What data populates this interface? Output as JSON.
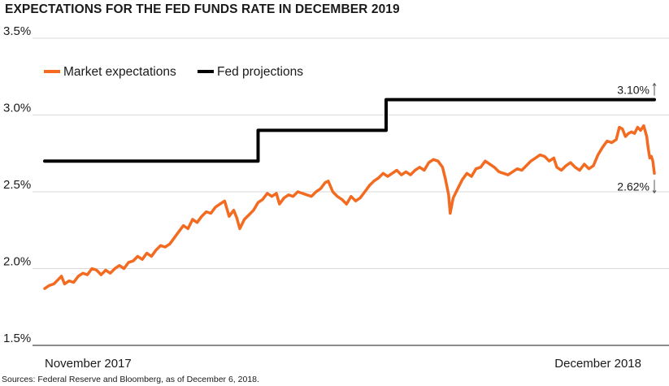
{
  "chart_data": {
    "type": "line",
    "title": "EXPECTATIONS FOR THE FED FUNDS RATE IN DECEMBER 2019",
    "source": "Sources: Federal Reserve and Bloomberg, as of December 6, 2018.",
    "ylim": [
      1.5,
      3.5
    ],
    "y_ticks": [
      {
        "value": 3.5,
        "label": "3.5%"
      },
      {
        "value": 3.0,
        "label": "3.0%"
      },
      {
        "value": 2.5,
        "label": "2.5%"
      },
      {
        "value": 2.0,
        "label": "2.0%"
      },
      {
        "value": 1.5,
        "label": "1.5%"
      }
    ],
    "x_range": [
      "2017-11-01",
      "2018-12-06"
    ],
    "x_tick_labels": [
      {
        "date": "2017-11-01",
        "label": "November 2017"
      },
      {
        "date": "2018-12-06",
        "label": "December 2018"
      }
    ],
    "grid": true,
    "legend_position": "top-left",
    "series": [
      {
        "name": "Market expectations",
        "color": "#f26b21",
        "style": "line",
        "points": [
          [
            "2017-11-01",
            1.87
          ],
          [
            "2017-11-04",
            1.89
          ],
          [
            "2017-11-07",
            1.9
          ],
          [
            "2017-11-10",
            1.93
          ],
          [
            "2017-11-12",
            1.95
          ],
          [
            "2017-11-14",
            1.9
          ],
          [
            "2017-11-17",
            1.92
          ],
          [
            "2017-11-20",
            1.91
          ],
          [
            "2017-11-23",
            1.95
          ],
          [
            "2017-11-26",
            1.97
          ],
          [
            "2017-11-29",
            1.96
          ],
          [
            "2017-12-02",
            2.0
          ],
          [
            "2017-12-05",
            1.99
          ],
          [
            "2017-12-08",
            1.96
          ],
          [
            "2017-12-11",
            1.99
          ],
          [
            "2017-12-14",
            1.97
          ],
          [
            "2017-12-17",
            2.0
          ],
          [
            "2017-12-20",
            2.02
          ],
          [
            "2017-12-23",
            2.0
          ],
          [
            "2017-12-26",
            2.04
          ],
          [
            "2017-12-29",
            2.05
          ],
          [
            "2018-01-01",
            2.08
          ],
          [
            "2018-01-04",
            2.06
          ],
          [
            "2018-01-07",
            2.1
          ],
          [
            "2018-01-10",
            2.08
          ],
          [
            "2018-01-13",
            2.12
          ],
          [
            "2018-01-16",
            2.15
          ],
          [
            "2018-01-19",
            2.14
          ],
          [
            "2018-01-22",
            2.16
          ],
          [
            "2018-01-25",
            2.2
          ],
          [
            "2018-01-28",
            2.24
          ],
          [
            "2018-01-31",
            2.28
          ],
          [
            "2018-02-03",
            2.26
          ],
          [
            "2018-02-06",
            2.32
          ],
          [
            "2018-02-09",
            2.3
          ],
          [
            "2018-02-12",
            2.34
          ],
          [
            "2018-02-15",
            2.37
          ],
          [
            "2018-02-18",
            2.36
          ],
          [
            "2018-02-21",
            2.4
          ],
          [
            "2018-02-24",
            2.42
          ],
          [
            "2018-02-27",
            2.44
          ],
          [
            "2018-03-02",
            2.34
          ],
          [
            "2018-03-05",
            2.38
          ],
          [
            "2018-03-07",
            2.33
          ],
          [
            "2018-03-09",
            2.26
          ],
          [
            "2018-03-12",
            2.32
          ],
          [
            "2018-03-15",
            2.35
          ],
          [
            "2018-03-18",
            2.38
          ],
          [
            "2018-03-21",
            2.43
          ],
          [
            "2018-03-24",
            2.45
          ],
          [
            "2018-03-27",
            2.49
          ],
          [
            "2018-03-30",
            2.47
          ],
          [
            "2018-04-02",
            2.49
          ],
          [
            "2018-04-04",
            2.42
          ],
          [
            "2018-04-07",
            2.46
          ],
          [
            "2018-04-10",
            2.48
          ],
          [
            "2018-04-13",
            2.47
          ],
          [
            "2018-04-16",
            2.5
          ],
          [
            "2018-04-19",
            2.49
          ],
          [
            "2018-04-22",
            2.48
          ],
          [
            "2018-04-25",
            2.47
          ],
          [
            "2018-04-28",
            2.5
          ],
          [
            "2018-05-01",
            2.52
          ],
          [
            "2018-05-04",
            2.56
          ],
          [
            "2018-05-06",
            2.57
          ],
          [
            "2018-05-09",
            2.5
          ],
          [
            "2018-05-12",
            2.47
          ],
          [
            "2018-05-15",
            2.45
          ],
          [
            "2018-05-18",
            2.42
          ],
          [
            "2018-05-21",
            2.47
          ],
          [
            "2018-05-24",
            2.44
          ],
          [
            "2018-05-27",
            2.46
          ],
          [
            "2018-05-30",
            2.5
          ],
          [
            "2018-06-02",
            2.54
          ],
          [
            "2018-06-05",
            2.57
          ],
          [
            "2018-06-08",
            2.59
          ],
          [
            "2018-06-11",
            2.62
          ],
          [
            "2018-06-14",
            2.6
          ],
          [
            "2018-06-17",
            2.62
          ],
          [
            "2018-06-20",
            2.64
          ],
          [
            "2018-06-23",
            2.61
          ],
          [
            "2018-06-26",
            2.63
          ],
          [
            "2018-06-29",
            2.61
          ],
          [
            "2018-07-02",
            2.64
          ],
          [
            "2018-07-05",
            2.66
          ],
          [
            "2018-07-08",
            2.64
          ],
          [
            "2018-07-11",
            2.69
          ],
          [
            "2018-07-14",
            2.71
          ],
          [
            "2018-07-17",
            2.7
          ],
          [
            "2018-07-20",
            2.66
          ],
          [
            "2018-07-22",
            2.58
          ],
          [
            "2018-07-24",
            2.48
          ],
          [
            "2018-07-25",
            2.36
          ],
          [
            "2018-07-27",
            2.46
          ],
          [
            "2018-07-30",
            2.52
          ],
          [
            "2018-08-02",
            2.58
          ],
          [
            "2018-08-05",
            2.62
          ],
          [
            "2018-08-08",
            2.6
          ],
          [
            "2018-08-11",
            2.65
          ],
          [
            "2018-08-14",
            2.66
          ],
          [
            "2018-08-17",
            2.7
          ],
          [
            "2018-08-20",
            2.68
          ],
          [
            "2018-08-23",
            2.66
          ],
          [
            "2018-08-26",
            2.63
          ],
          [
            "2018-08-29",
            2.62
          ],
          [
            "2018-09-01",
            2.61
          ],
          [
            "2018-09-04",
            2.63
          ],
          [
            "2018-09-07",
            2.65
          ],
          [
            "2018-09-10",
            2.64
          ],
          [
            "2018-09-13",
            2.67
          ],
          [
            "2018-09-16",
            2.7
          ],
          [
            "2018-09-19",
            2.72
          ],
          [
            "2018-09-22",
            2.74
          ],
          [
            "2018-09-25",
            2.73
          ],
          [
            "2018-09-28",
            2.7
          ],
          [
            "2018-10-01",
            2.72
          ],
          [
            "2018-10-03",
            2.66
          ],
          [
            "2018-10-06",
            2.64
          ],
          [
            "2018-10-09",
            2.67
          ],
          [
            "2018-10-12",
            2.69
          ],
          [
            "2018-10-15",
            2.66
          ],
          [
            "2018-10-18",
            2.64
          ],
          [
            "2018-10-21",
            2.68
          ],
          [
            "2018-10-24",
            2.65
          ],
          [
            "2018-10-27",
            2.67
          ],
          [
            "2018-10-30",
            2.74
          ],
          [
            "2018-11-02",
            2.79
          ],
          [
            "2018-11-05",
            2.83
          ],
          [
            "2018-11-08",
            2.82
          ],
          [
            "2018-11-11",
            2.84
          ],
          [
            "2018-11-13",
            2.92
          ],
          [
            "2018-11-15",
            2.91
          ],
          [
            "2018-11-17",
            2.86
          ],
          [
            "2018-11-19",
            2.88
          ],
          [
            "2018-11-21",
            2.89
          ],
          [
            "2018-11-23",
            2.88
          ],
          [
            "2018-11-25",
            2.92
          ],
          [
            "2018-11-27",
            2.9
          ],
          [
            "2018-11-29",
            2.93
          ],
          [
            "2018-12-01",
            2.86
          ],
          [
            "2018-12-02",
            2.78
          ],
          [
            "2018-12-03",
            2.72
          ],
          [
            "2018-12-04",
            2.73
          ],
          [
            "2018-12-05",
            2.7
          ],
          [
            "2018-12-06",
            2.62
          ]
        ]
      },
      {
        "name": "Fed projections",
        "color": "#000000",
        "style": "step",
        "points": [
          [
            "2017-11-01",
            2.7
          ],
          [
            "2018-03-21",
            2.7
          ],
          [
            "2018-03-21",
            2.9
          ],
          [
            "2018-06-13",
            2.9
          ],
          [
            "2018-06-13",
            3.1
          ],
          [
            "2018-12-06",
            3.1
          ]
        ]
      }
    ],
    "annotations": [
      {
        "label": "3.10%",
        "series": "Fed projections",
        "value": 3.1
      },
      {
        "label": "2.62%",
        "series": "Market expectations",
        "value": 2.62
      }
    ]
  }
}
